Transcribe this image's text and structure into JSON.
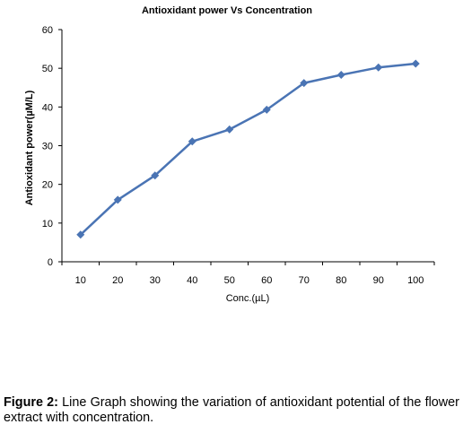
{
  "chart_data": {
    "type": "line",
    "title": "Antioxidant power Vs Concentration",
    "xlabel": "Conc.(µL)",
    "ylabel": "Antioxidant power(µM/L)",
    "x": [
      10,
      20,
      30,
      40,
      50,
      60,
      70,
      80,
      90,
      100
    ],
    "series": [
      {
        "values": [
          7,
          16,
          22.3,
          31.1,
          34.2,
          39.3,
          46.2,
          48.3,
          50.2,
          51.2
        ]
      }
    ],
    "ylim": [
      0,
      60
    ],
    "yticks": [
      0,
      10,
      20,
      30,
      40,
      50,
      60
    ],
    "grid": false,
    "legend": "none",
    "line_color": "#4a74b4",
    "marker": "diamond"
  },
  "caption": {
    "label": "Figure 2:",
    "text": " Line Graph showing the variation of antioxidant potential of the flower extract with concentration."
  }
}
